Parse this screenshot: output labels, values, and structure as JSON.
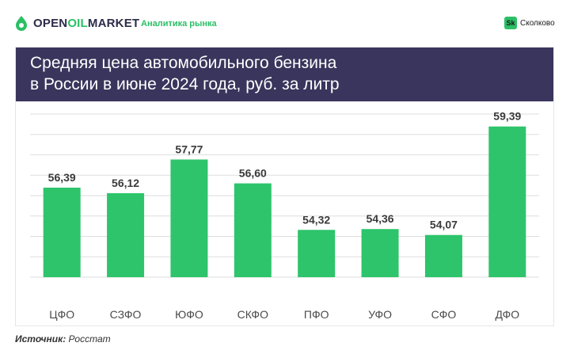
{
  "header": {
    "brand_part1": "OPEN",
    "brand_part2": "OIL",
    "brand_part3": "MARKET",
    "subtitle": "Аналитика рынка",
    "partner_badge": "Sk",
    "partner_name": "Сколково"
  },
  "colors": {
    "bar": "#2ec46b",
    "banner": "#3a355c",
    "accent": "#2bbf66"
  },
  "chart_data": {
    "type": "bar",
    "title": "Средняя цена автомобильного бензина в России в июне 2024 года, руб. за литр",
    "title_lines": [
      "Средняя цена автомобильного бензина",
      "в России в июне 2024 года, руб. за литр"
    ],
    "categories": [
      "ЦФО",
      "СЗФО",
      "ЮФО",
      "СКФО",
      "ПФО",
      "УФО",
      "СФО",
      "ДФО"
    ],
    "values": [
      56.39,
      56.12,
      57.77,
      56.6,
      54.32,
      54.36,
      54.07,
      59.39
    ],
    "data_labels": [
      "56,39",
      "56,12",
      "57,77",
      "56,60",
      "54,32",
      "54,36",
      "54,07",
      "59,39"
    ],
    "ylim": [
      52.0,
      60.0
    ],
    "grid": true,
    "legend": "none"
  },
  "source": {
    "label": "Источник:",
    "value": "Росстат"
  }
}
